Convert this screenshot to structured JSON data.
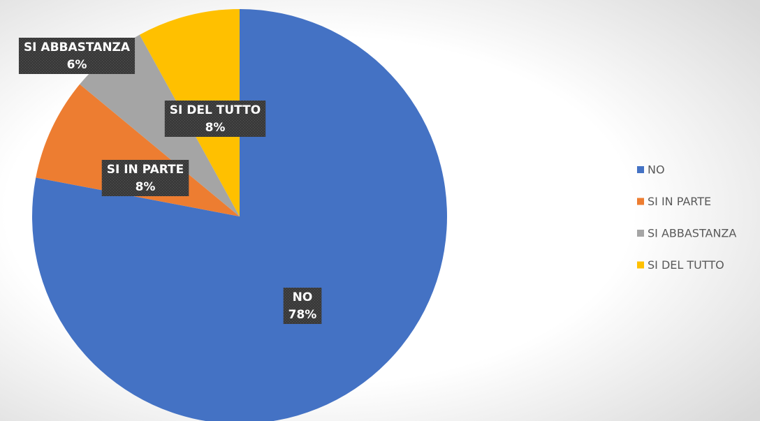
{
  "chart_data": {
    "type": "pie",
    "categories": [
      "NO",
      "SI IN PARTE",
      "SI ABBASTANZA",
      "SI DEL TUTTO"
    ],
    "values": [
      78,
      8,
      6,
      8
    ],
    "value_labels": [
      "78%",
      "8%",
      "6%",
      "8%"
    ],
    "colors": [
      "#4472c4",
      "#ed7d31",
      "#a5a5a5",
      "#ffc000"
    ],
    "legend": "right"
  }
}
